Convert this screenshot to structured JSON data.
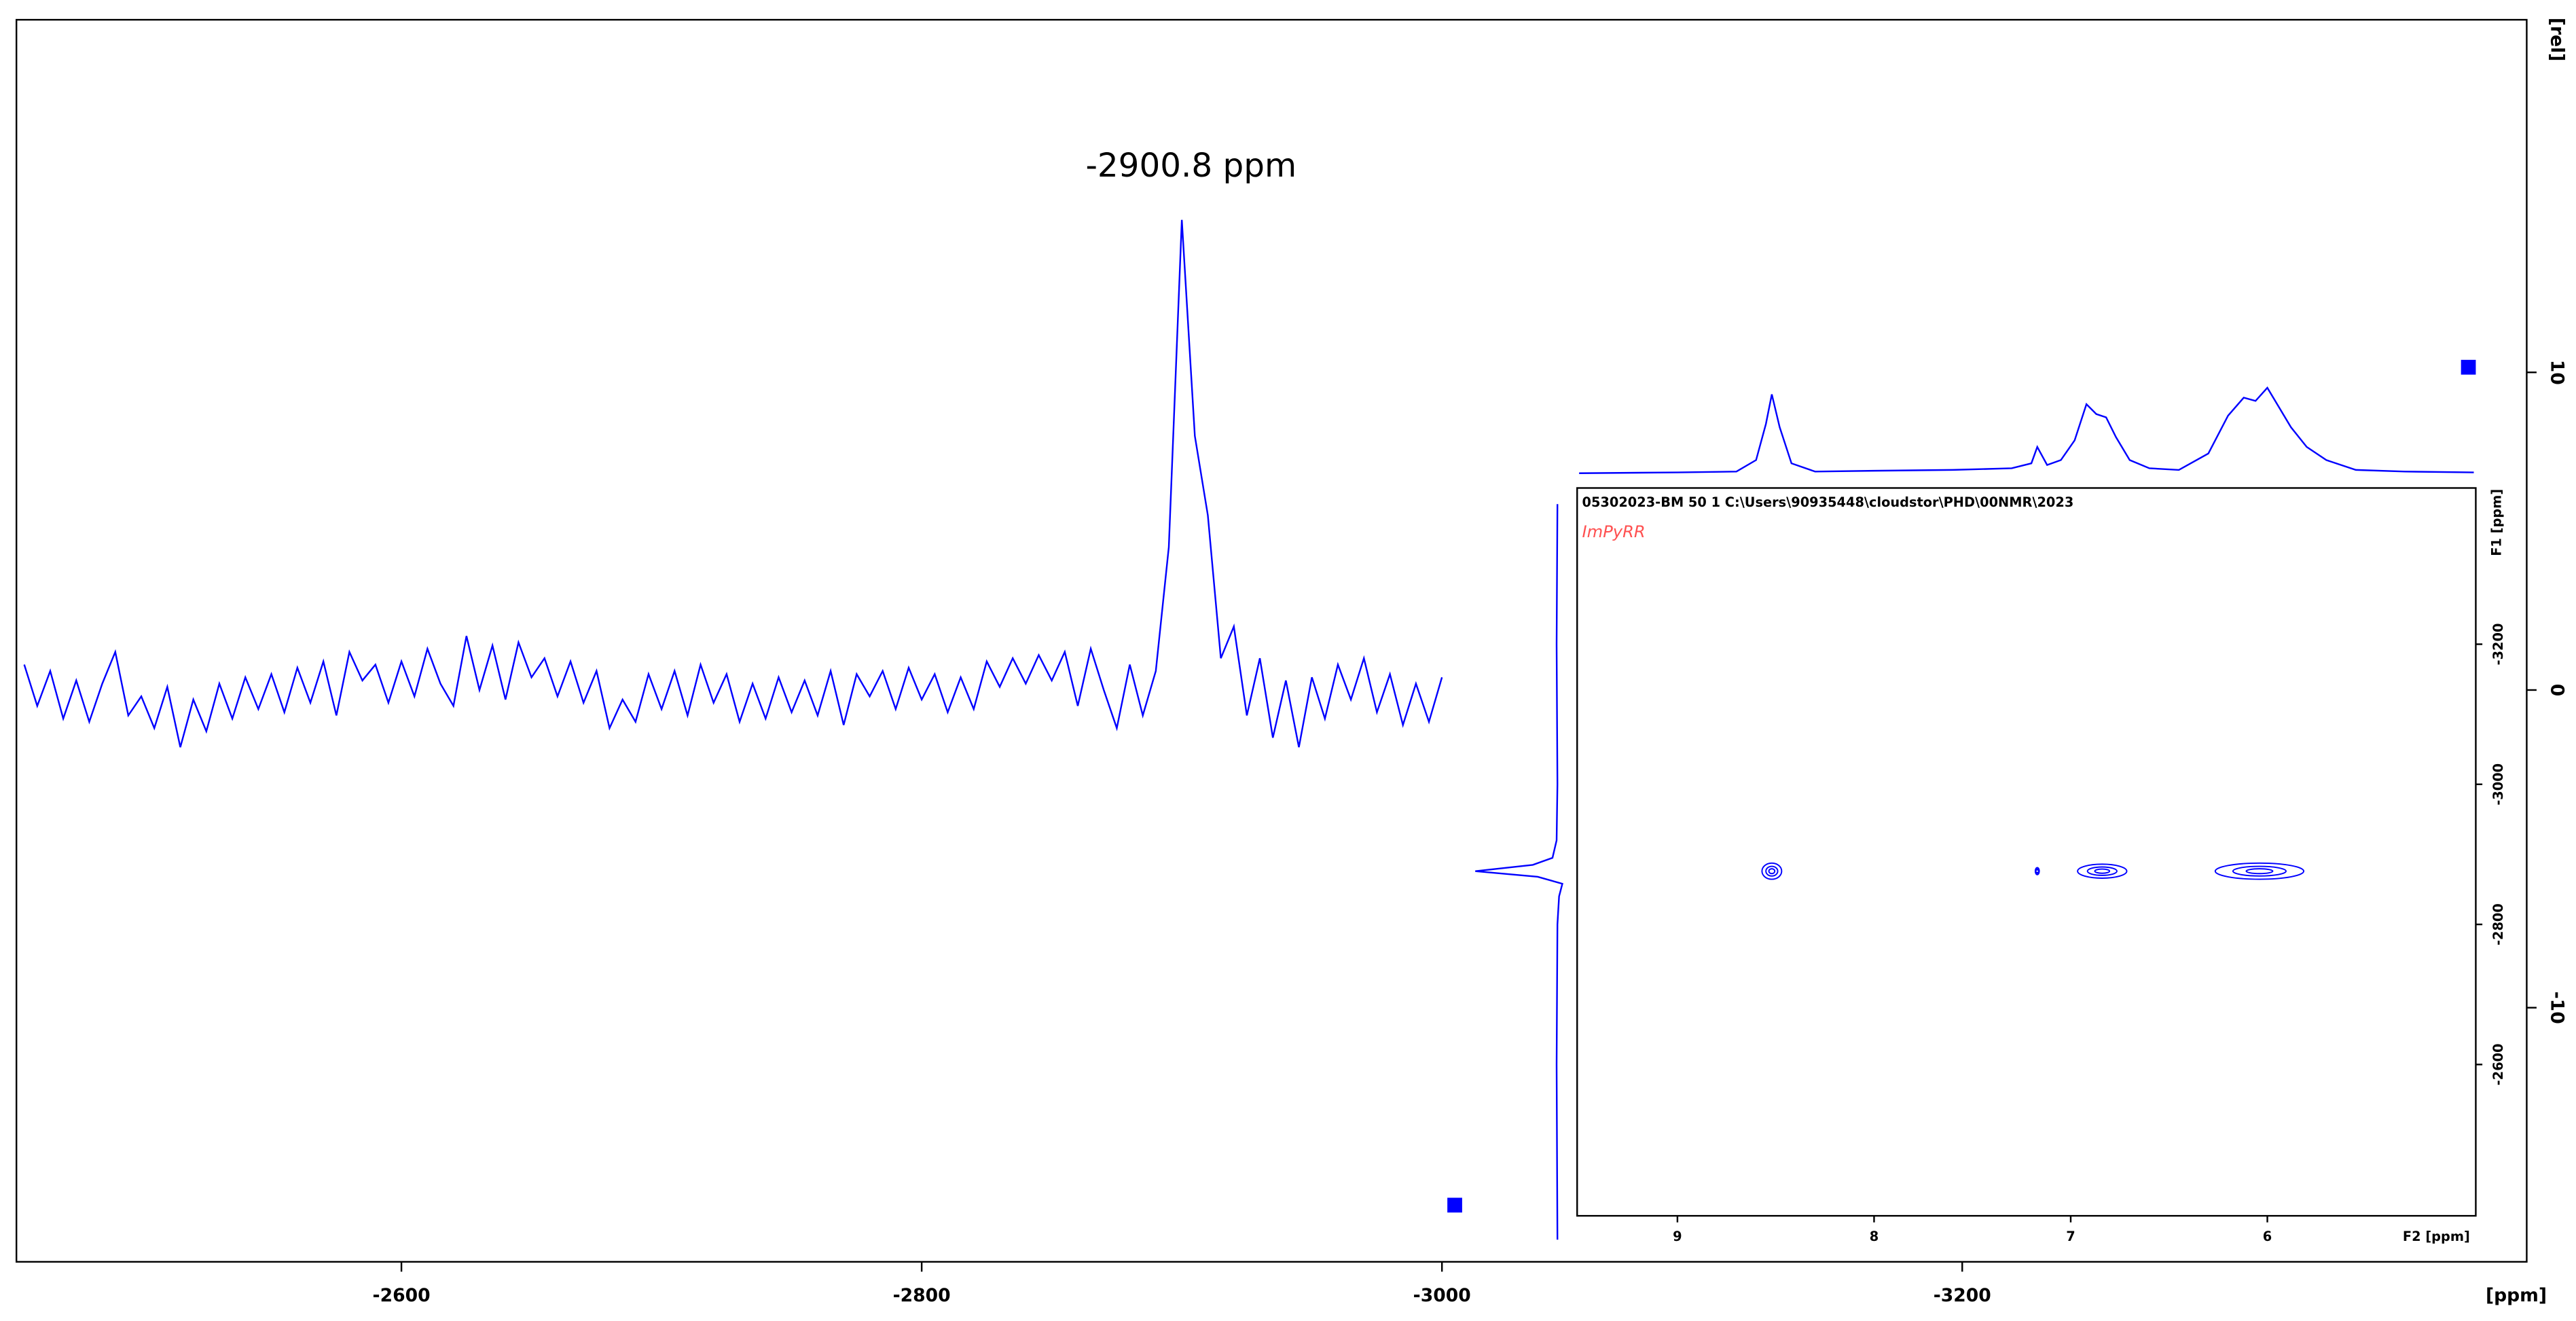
{
  "chart_data": [
    {
      "type": "line",
      "annotation": "-2900.8 ppm",
      "x_label": "[ppm]",
      "y_label": "[rel]",
      "xlim": [
        -2452,
        -3417
      ],
      "ylim": [
        -18,
        21.1
      ],
      "xticks": [
        -2600,
        -2800,
        -3000,
        -3200
      ],
      "yticks": [
        10,
        0,
        -10
      ],
      "color": "#0000ff",
      "x": [
        -2455,
        -2460,
        -2465,
        -2470,
        -2475,
        -2480,
        -2485,
        -2490,
        -2495,
        -2500,
        -2505,
        -2510,
        -2515,
        -2520,
        -2525,
        -2530,
        -2535,
        -2540,
        -2545,
        -2550,
        -2555,
        -2560,
        -2565,
        -2570,
        -2575,
        -2580,
        -2585,
        -2590,
        -2595,
        -2600,
        -2605,
        -2610,
        -2615,
        -2620,
        -2625,
        -2630,
        -2635,
        -2640,
        -2645,
        -2650,
        -2655,
        -2660,
        -2665,
        -2670,
        -2675,
        -2680,
        -2685,
        -2690,
        -2695,
        -2700,
        -2705,
        -2710,
        -2715,
        -2720,
        -2725,
        -2730,
        -2735,
        -2740,
        -2745,
        -2750,
        -2755,
        -2760,
        -2765,
        -2770,
        -2775,
        -2780,
        -2785,
        -2790,
        -2795,
        -2800,
        -2805,
        -2810,
        -2815,
        -2820,
        -2825,
        -2830,
        -2835,
        -2840,
        -2845,
        -2850,
        -2855,
        -2860,
        -2865,
        -2870,
        -2875,
        -2880,
        -2885,
        -2890,
        -2895,
        -2900,
        -2905,
        -2910,
        -2915,
        -2920,
        -2925,
        -2930,
        -2935,
        -2940,
        -2945,
        -2950,
        -2955,
        -2960,
        -2965,
        -2970,
        -2975,
        -2980,
        -2985,
        -2990,
        -2995,
        -3000
      ],
      "values": [
        0.8,
        -0.5,
        0.6,
        -0.9,
        0.3,
        -1.0,
        0.2,
        1.2,
        -0.8,
        -0.2,
        -1.2,
        0.1,
        -1.8,
        -0.3,
        -1.3,
        0.2,
        -0.9,
        0.4,
        -0.6,
        0.5,
        -0.7,
        0.7,
        -0.4,
        0.9,
        -0.8,
        1.2,
        0.3,
        0.8,
        -0.4,
        0.9,
        -0.2,
        1.3,
        0.2,
        -0.5,
        1.7,
        0.0,
        1.4,
        -0.3,
        1.5,
        0.4,
        1.0,
        -0.2,
        0.9,
        -0.4,
        0.6,
        -1.2,
        -0.3,
        -1.0,
        0.5,
        -0.6,
        0.6,
        -0.8,
        0.8,
        -0.4,
        0.5,
        -1.0,
        0.2,
        -0.9,
        0.4,
        -0.7,
        0.3,
        -0.8,
        0.6,
        -1.1,
        0.5,
        -0.2,
        0.6,
        -0.6,
        0.7,
        -0.3,
        0.5,
        -0.7,
        0.4,
        -0.6,
        0.9,
        0.1,
        1.0,
        0.2,
        1.1,
        0.3,
        1.2,
        -0.5,
        1.3,
        0.0,
        -1.2,
        0.8,
        -0.8,
        0.6,
        4.5,
        14.8,
        8.0,
        5.5,
        1.0,
        2.0,
        -0.8,
        1.0,
        -1.5,
        0.3,
        -1.8,
        0.4,
        -0.9,
        0.8,
        -0.3,
        1.0,
        -0.7,
        0.5,
        -1.1,
        0.2,
        -1.0,
        0.4
      ]
    },
    {
      "type": "contour",
      "dataset": "05302023-BM  50  1  C:\\Users\\90935448\\cloudstor\\PHD\\00NMR\\2023",
      "title": "ImPyRR",
      "x_label": "F2 [ppm]",
      "y_label": "F1 [ppm]",
      "xlim": [
        9.51,
        4.94
      ],
      "ylim": [
        -2384,
        -3423
      ],
      "xticks": [
        9,
        8,
        7,
        6
      ],
      "yticks": [
        -3200,
        -3000,
        -2800,
        -2600
      ],
      "color": "#0000ff",
      "peaks": [
        {
          "f2": 8.52,
          "f1": -2876,
          "f2_width": 0.1,
          "f1_width": 23
        },
        {
          "f2": 7.17,
          "f1": -2876,
          "f2_width": 0.02,
          "f1_width": 10
        },
        {
          "f2": 6.84,
          "f1": -2876,
          "f2_width": 0.25,
          "f1_width": 20
        },
        {
          "f2": 6.04,
          "f1": -2876,
          "f2_width": 0.45,
          "f1_width": 23
        }
      ],
      "f2_projection": {
        "lim": [
          0,
          60
        ],
        "f2": [
          9.5,
          9.0,
          8.7,
          8.6,
          8.55,
          8.52,
          8.48,
          8.42,
          8.3,
          8.0,
          7.6,
          7.3,
          7.2,
          7.17,
          7.12,
          7.05,
          6.98,
          6.92,
          6.87,
          6.82,
          6.77,
          6.7,
          6.6,
          6.45,
          6.3,
          6.2,
          6.12,
          6.06,
          6.0,
          5.95,
          5.88,
          5.8,
          5.7,
          5.55,
          5.3,
          4.95
        ],
        "values": [
          0,
          0.5,
          1,
          8,
          30,
          48,
          28,
          6,
          1,
          1.5,
          2,
          3,
          6,
          16,
          5,
          8,
          20,
          42,
          36,
          34,
          22,
          8,
          3,
          2,
          12,
          35,
          46,
          44,
          52,
          42,
          28,
          16,
          8,
          2,
          1,
          0.5
        ]
      },
      "f1_projection": {
        "lim": [
          0,
          60
        ],
        "f1": [
          -3400,
          -3200,
          -3000,
          -2920,
          -2895,
          -2885,
          -2876,
          -2868,
          -2858,
          -2840,
          -2800,
          -2600,
          -2350
        ],
        "values": [
          0,
          0.5,
          0,
          0.5,
          3,
          15,
          50,
          12,
          -3,
          -1,
          0,
          0.5,
          0
        ]
      }
    }
  ]
}
